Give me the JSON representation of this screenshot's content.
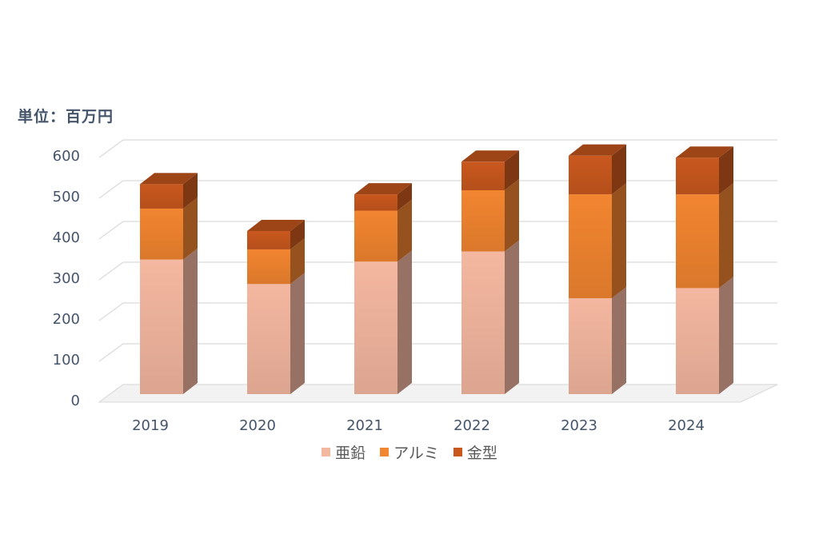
{
  "unit_label": "単位：百万円",
  "colors": {
    "zinc": "#f4b7a0",
    "aluminum": "#f28530",
    "mold": "#c9581e",
    "grid": "#d9d9d9",
    "text": "#44546a"
  },
  "chart_data": {
    "type": "bar",
    "stacked": true,
    "style": "3d-column",
    "categories": [
      "2019",
      "2020",
      "2021",
      "2022",
      "2023",
      "2024"
    ],
    "series": [
      {
        "name": "亜鉛",
        "values": [
          330,
          270,
          325,
          350,
          235,
          260
        ]
      },
      {
        "name": "アルミ",
        "values": [
          125,
          85,
          125,
          150,
          255,
          230
        ]
      },
      {
        "name": "金型",
        "values": [
          60,
          45,
          40,
          70,
          95,
          90
        ]
      }
    ],
    "ylim": [
      0,
      600
    ],
    "yticks": [
      0,
      100,
      200,
      300,
      400,
      500,
      600
    ],
    "grid": true,
    "legend_position": "bottom"
  }
}
